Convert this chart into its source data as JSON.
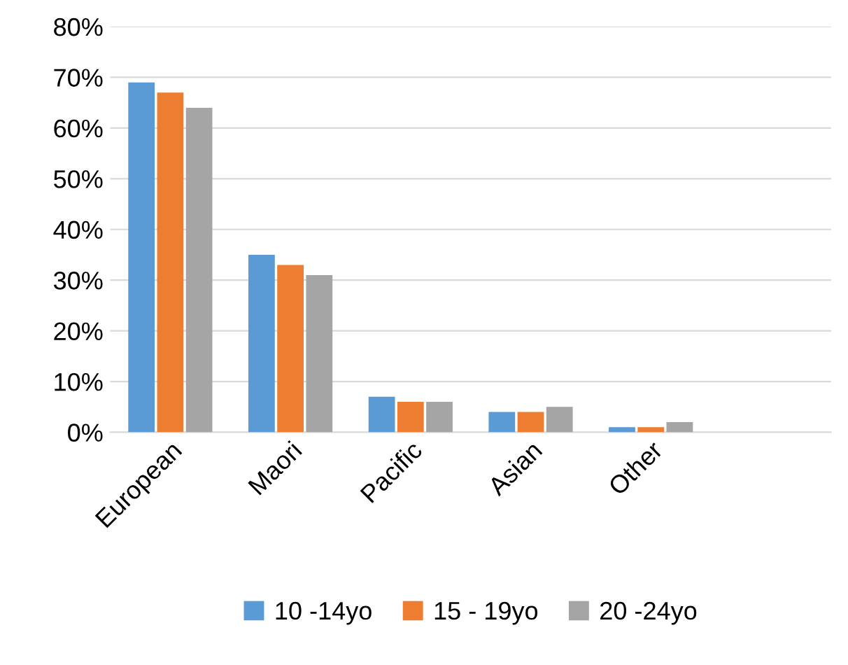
{
  "chart_data": {
    "type": "bar",
    "categories": [
      "European",
      "Maori",
      "Pacific",
      "Asian",
      "Other",
      null
    ],
    "series": [
      {
        "name": "10 -14yo",
        "color": "#5b9bd5",
        "values": [
          69,
          35,
          7,
          4,
          1,
          null
        ]
      },
      {
        "name": "15 - 19yo",
        "color": "#ed7d31",
        "values": [
          67,
          33,
          6,
          4,
          1,
          null
        ]
      },
      {
        "name": "20 -24yo",
        "color": "#a5a5a5",
        "values": [
          64,
          31,
          6,
          5,
          2,
          null
        ]
      }
    ],
    "ylim": [
      0,
      80
    ],
    "yticks": [
      {
        "value": 0,
        "label": "0%"
      },
      {
        "value": 10,
        "label": "10%"
      },
      {
        "value": 20,
        "label": "20%"
      },
      {
        "value": 30,
        "label": "30%"
      },
      {
        "value": 40,
        "label": "40%"
      },
      {
        "value": 50,
        "label": "50%"
      },
      {
        "value": 60,
        "label": "60%"
      },
      {
        "value": 70,
        "label": "70%"
      },
      {
        "value": 80,
        "label": "80%"
      }
    ],
    "grid": "y",
    "legend": "bottom"
  }
}
